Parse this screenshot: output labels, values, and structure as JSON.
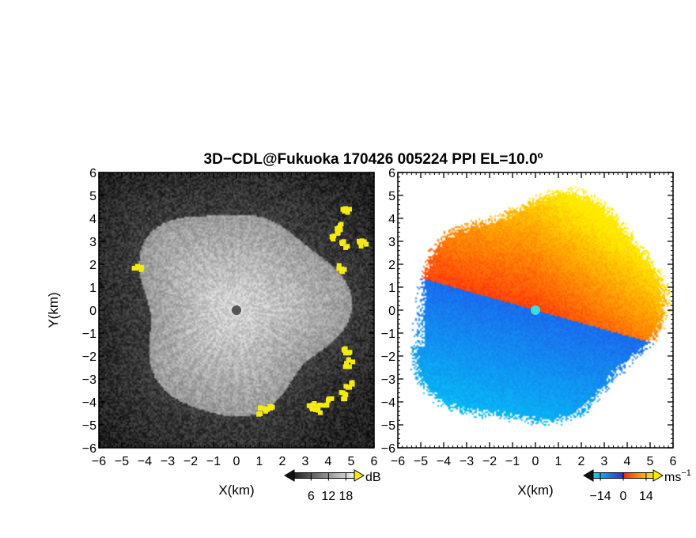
{
  "title": "3D−CDL@Fukuoka 170426 005224 PPI EL=10.0º",
  "colors": {
    "background": "#ffffff",
    "axis": "#000000",
    "marker_reflectivity": "#555555",
    "marker_velocity": "#33e0e0",
    "highlight": "#f5ea10"
  },
  "chart_data": [
    {
      "type": "heatmap",
      "name": "reflectivity-panel",
      "variable": "reflectivity",
      "xlabel": "X(km)",
      "ylabel": "Y(km)",
      "xlim": [
        -6,
        6
      ],
      "ylim": [
        -6,
        6
      ],
      "ticks": [
        -6,
        -5,
        -4,
        -3,
        -2,
        -1,
        0,
        1,
        2,
        3,
        4,
        5,
        6
      ],
      "tick_labels": [
        "−6",
        "−5",
        "−4",
        "−3",
        "−2",
        "−1",
        "0",
        "1",
        "2",
        "3",
        "4",
        "5",
        "6"
      ],
      "colorbar": {
        "unit": "dB",
        "tick_labels": [
          "6",
          "12",
          "18"
        ],
        "colormap": "gray",
        "highlight_color": "#f5ea10"
      },
      "center_marker": [
        0,
        0
      ],
      "echo_radius_km": 4.4,
      "highlight_patches_km": [
        [
          4.8,
          4.3
        ],
        [
          4.5,
          3.6
        ],
        [
          4.3,
          3.2
        ],
        [
          4.7,
          2.9
        ],
        [
          5.5,
          2.9
        ],
        [
          4.6,
          1.8
        ],
        [
          4.8,
          -1.8
        ],
        [
          4.9,
          -2.3
        ],
        [
          4.9,
          -3.3
        ],
        [
          4.7,
          -3.7
        ],
        [
          4.0,
          -4.0
        ],
        [
          3.5,
          -4.3
        ],
        [
          3.3,
          -4.2
        ],
        [
          1.1,
          -4.4
        ],
        [
          1.4,
          -4.3
        ],
        [
          -4.3,
          1.8
        ]
      ]
    },
    {
      "type": "heatmap",
      "name": "velocity-panel",
      "variable": "doppler velocity",
      "xlabel": "X(km)",
      "ylabel": "",
      "xlim": [
        -6,
        6
      ],
      "ylim": [
        -6,
        6
      ],
      "ticks": [
        -6,
        -5,
        -4,
        -3,
        -2,
        -1,
        0,
        1,
        2,
        3,
        4,
        5,
        6
      ],
      "tick_labels": [
        "−6",
        "−5",
        "−4",
        "−3",
        "−2",
        "−1",
        "0",
        "1",
        "2",
        "3",
        "4",
        "5",
        "6"
      ],
      "colorbar": {
        "unit": "ms",
        "unit_exponent": "−1",
        "tick_labels": [
          "−14",
          "0",
          "14"
        ],
        "colormap": "diverging cyan-blue / red-yellow",
        "range": [
          -14,
          14
        ]
      },
      "center_marker": [
        0,
        0
      ]
    }
  ]
}
